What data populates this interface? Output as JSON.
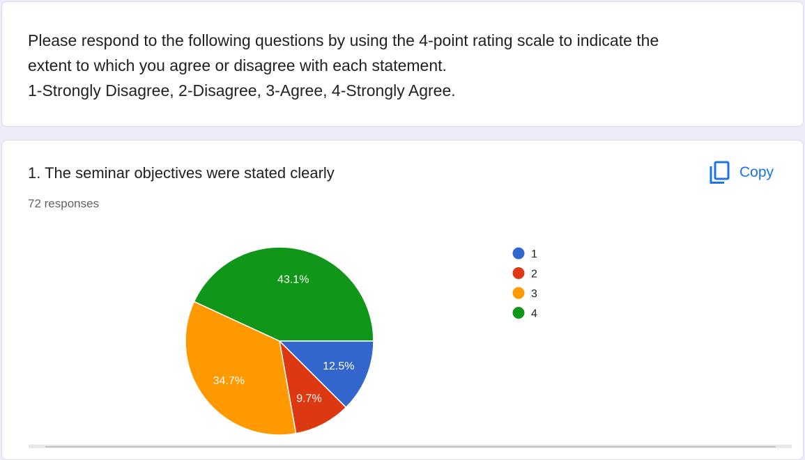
{
  "description": {
    "lines": [
      "Please respond to the following questions by using the 4-point rating scale to indicate the",
      "extent to which you agree or disagree with each statement.",
      "1-Strongly Disagree, 2-Disagree, 3-Agree, 4-Strongly Agree."
    ]
  },
  "question": {
    "title": "1. The seminar objectives were stated clearly",
    "responses": "72 responses",
    "copy_label": "Copy",
    "copy_icon": "copy-icon"
  },
  "chart_data": {
    "type": "pie",
    "categories": [
      "1",
      "2",
      "3",
      "4"
    ],
    "values": [
      12.5,
      9.7,
      34.7,
      43.1
    ],
    "labels": [
      "12.5%",
      "9.7%",
      "34.7%",
      "43.1%"
    ],
    "colors": [
      "#3366cc",
      "#dc3912",
      "#ff9900",
      "#109618"
    ],
    "legend_position": "right",
    "start": "right",
    "direction": "clockwise"
  }
}
